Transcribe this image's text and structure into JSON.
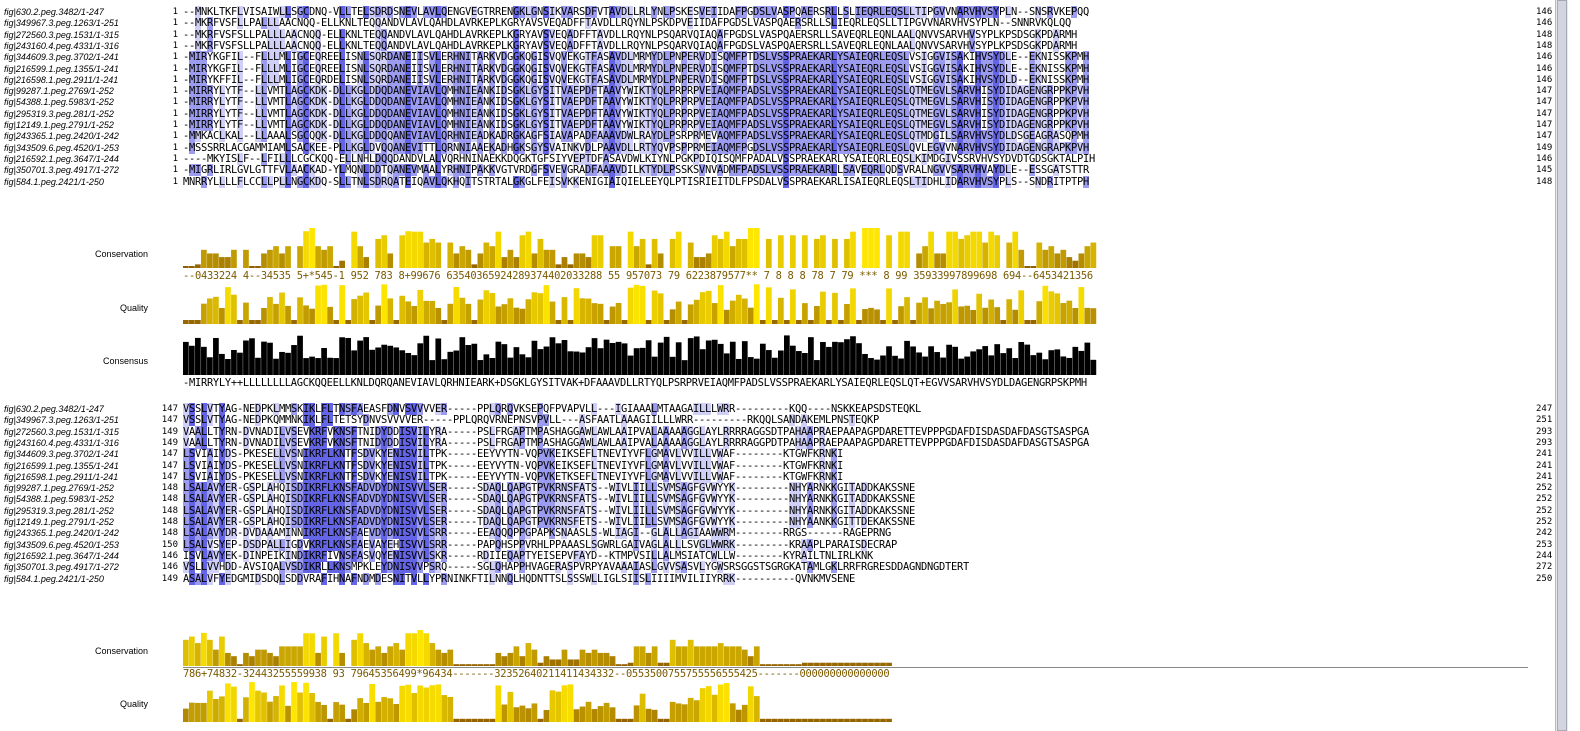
{
  "block1": {
    "rows": [
      {
        "name": "fig|630.2.peg.3482/1-247",
        "start": "1",
        "end": "146",
        "seq": "--MNKLTKFLVISAIWLLSGCDNQ-VLLTELSDRDSNEVLAVLQENGVEGTRRENGKLGNSIKVARSDFVTAVDLLRLYNLPSKESVEIIDAFPGDSLVASPQAERSRLLSLIEQRLEQSLLTIPGVVNARVHVSYPLN--SNSRVKEPQQ"
      },
      {
        "name": "fig|349967.3.peg.1263/1-251",
        "start": "1",
        "end": "146",
        "seq": "--MKRFVSFLLPALLLAACNQQ-ELLKNLTEQQANDVLAVLQAHDLAVRKEPLKGRYAVSVEQADFFTAVDLLRQYNLPSKDPVEIIDAFPGDSLVASPQAERSRLLSLIEQRLEQSLLTIPGVVNARVHVSYPLN--SNNRVKQLQQ"
      },
      {
        "name": "fig|272560.3.peg.1531/1-315",
        "start": "1",
        "end": "148",
        "seq": "--MKRFVSFSLLPALLLAACNQQ-ELLKNLTEQQANDVLAVLQAHDLAVRKEPLKGRYAVSVEQADFFTAVDLLRQYNLPSQARVQIAQAFPGDSLVASPQAERSRLLSAVEQRLEQNLAALQNVVSARVHVSYPLKPSDSGKPDARMH"
      },
      {
        "name": "fig|243160.4.peg.4331/1-316",
        "start": "1",
        "end": "148",
        "seq": "--MKRFVSFSLLPALLLAACNQQ-ELLKNLTEQQANDVLAVLQAHDLAVRKEPLKGRYAVSVEQADFFTAVDLLRQYNLPSQARVQIAQAFPGDSLVASPQAERSRLLSAVEQRLEQNLAALQNVVSARVHVSYPLKPSDSGKPDARMH"
      },
      {
        "name": "fig|344609.3.peg.3702/1-241",
        "start": "1",
        "end": "146",
        "seq": "-MIRYKGFIL--FLLLMLIGCEQREELISNLSQRDANEIISVLERHNITARKVDGGKQGISVQVEKGTFASAVDLMRMYDLPNPERVDISQMFPTDSLVSSPRAEKARLYSAIEQRLEQSLVSIGGVISAKIHVSYDLE--EKNISSKPMH"
      },
      {
        "name": "fig|216599.1.peg.1355/1-241",
        "start": "1",
        "end": "146",
        "seq": "-MIRYKGFIL--FLLLMLIGCEQREELISNLSQRDANEIISVLERHNITARKVDGGKQGISVQVEKGTFASAVDLMRMYDLPNPERVDISQMFPTDSLVSSPRAEKARLYSAIEQRLEQSLVSIGGVISAKIHVSYDLE--EKNISSKPMH"
      },
      {
        "name": "fig|216598.1.peg.2911/1-241",
        "start": "1",
        "end": "146",
        "seq": "-MIRYKFFIL--FLLLMLIGCEQRDELISNLSQRDANEIISVLERHNITARKVDGGKQGISVQVEKGTFASAVDLMRMYDLPNPERVDISQMFPTDSLVSSPRAEKARLYSAIEQRLEQSLVSIGGVISAKIHVSYDLD--EKNISSKPMH"
      },
      {
        "name": "fig|99287.1.peg.2769/1-252",
        "start": "1",
        "end": "147",
        "seq": "-MIRRYLYTF--LLVMTLAGCKDK-DLLKGLDDQDANEVIAVLQMHNIEANKIDSGKLGYSITVAEPDFTAAVYWIKTYQLPRPRPVEIAQMFPADSLVSSPRAEKARLYSAIEQRLEQSLQTMEGVLSARVHISYDIDAGENGRPPKPVH"
      },
      {
        "name": "fig|54388.1.peg.5983/1-252",
        "start": "1",
        "end": "147",
        "seq": "-MIRRYLYTF--LLVMTLAGCKDK-DLLKGLDDQDANEVIAVLQMHNIEANKIDSGKLGYSITVAEPDFTAAVYWIKTYQLPRPRPVEIAQMFPADSLVSSPRAEKARLYSAIEQRLEQSLQTMEGVLSARVHISYDIDAGENGRPPKPVH"
      },
      {
        "name": "fig|295319.3.peg.281/1-252",
        "start": "1",
        "end": "147",
        "seq": "-MIRRYLYTF--LLVMTLAGCKDK-DLLKGLDDQDANEVIAVLQMHNIEANKIDSGKLGYSITVAEPDFTAAVYWIKTYQLPRPRPVEIAQMFPADSLVSSPRAEKARLYSAIEQRLEQSLQTMEGVLSARVHISYDIDAGENGRPPKPVH"
      },
      {
        "name": "fig|12149.1.peg.2791/1-252",
        "start": "1",
        "end": "147",
        "seq": "-MIRRYLYTF--LLVMTLAGCKDK-DLLKGLDDQDANEVIAVLQMHNIEANKIDSGKLGYSITVAEPDFTAAVYWIKTYQLPRPRPVEIAQMFPADSLVSSPRAEKARLYSAIEQRLEQSLQTMEGVLSARVHISYDIDAGENGRPPKPVH"
      },
      {
        "name": "fig|243365.1.peg.2420/1-242",
        "start": "1",
        "end": "147",
        "seq": "-MMKACLKAL--LLAAALSGCQQK-DLLKGLDDQQANEVIAVLQRHNIEADKADRGKAGFSIAVAPADFAAAVDWLRAYDLPSRPRMEVAQMFPADSLVSSPRAEKARLYSAIEQRLEQSLQTMDGILSARVHVSYDLDSGEAGRASQPMH"
      },
      {
        "name": "fig|343509.6.peg.4520/1-253",
        "start": "1",
        "end": "149",
        "seq": "-MSSSRRLACGAMMIAMLSACKEE-PLLKGLDVQQANEVITTLQRNNIAAEKADHGKSGYSVAINKVDLPAAVDLLRTYQVPSPPRMEIAQMFPGDSLVSSPRAEKARLYSAIEQRLEQSLQVLEGVVNARVHVSYDIDAGENGRAPKPVH"
      },
      {
        "name": "fig|216592.1.peg.3647/1-244",
        "start": "1",
        "end": "146",
        "seq": "----MKYISLF--LFILLLCGCKQQ-ELLNHLDQQDANDVLALVQRHNINAEKKDQGKTGFSIYVEPTDFASAVDWLKIYNLPGKPDIQISQMFPADALVSSPRAEKARLYSAIEQRLEQSLKIMDGIVSSRVHVSYDVDTGDSGKTALPIH"
      },
      {
        "name": "fig|350701.3.peg.4917/1-272",
        "start": "1",
        "end": "145",
        "seq": "-MIGRLIRLGVLGTTFVLAACKAD-YLMQNLDDTQANEVMAALYRHNIPAKKVGTVRDGFSVEVGRADFAAAVDILKTYDLPSSKSVNVADMFPADSLVSSPRAEKARLLSAVEQRLQDSVRALNGVVSARVHVAYDLE--ESSGATSTTR"
      },
      {
        "name": "fig|584.1.peg.2421/1-250",
        "start": "1",
        "end": "148",
        "seq": "MNRRYLLLLFLCCLLPLLNGCKDQ-SLLTNLSDRQATEIQAVLQKHQITSTRTALGKGLFEISVKKENIGIAIQIELEEYQLPTISRIEITDLFPSDALVSSPRAEKARLISAIEQRLEQSLTIDHLIDARVHVSYPLS--SNDRITPTPH"
      }
    ],
    "conservation_label": "Conservation",
    "conservation_line": "--0433224 4--34535 5+*545-1 952 783 8+99676 63540365924289374402033288 55 957073 79 6223879577** 7 8 8 8 78 7 79 *** 8 99 35933997899698 694--6453421356",
    "quality_label": "Quality",
    "consensus_label": "Consensus",
    "consensus_line": "-MIRRYLY++LLLLLLLLAGCKQQEELLKNLDQRQANEVIAVLQRHNIEARK+DSGKLGYSITVAK+DFAAAVDLLRTYQLPSRPRVEIAQMFPADSLVSSPRAEKARLYSAIEQRLEQSLQT+EGVVSARVHVSYDLDAGENGRPSKPMH"
  },
  "block2": {
    "rows": [
      {
        "name": "fig|630.2.peg.3482/1-247",
        "start": "147",
        "end": "247",
        "seq": "VSSLVTYAG-NEDPKLMMSKIKLFLTNSFAEASFDNVSVVVVER-----PPLQRQVKSEPQFPVAPVLL---IGIAAALMTAAGAILLLWRR---------KQQ----NSKKEAPSDSTEQKL"
      },
      {
        "name": "fig|349967.3.peg.1263/1-251",
        "start": "147",
        "end": "251",
        "seq": "VSSLVTYAG-NEDPKQMMNKIKLFLTETSYDNVSVVVVER-----PPLQRQVRNEPNSVPVLL---ASFAATLAAAGIILLLWRR---------RKQQLSANDAKEMLPNSTEQKP"
      },
      {
        "name": "fig|272560.3.peg.1531/1-315",
        "start": "149",
        "end": "293",
        "seq": "VAALLTYRN-DVNADILVSEVKRFVKNSFTNIDYDDISVILYRA-----PSLFRGAPTMPASHAGGAWLAWLAAIPVALAAAAAGGLAYLRRRRAGGSDTPAHAAPRAEPAAPAGPDARETTEVPPPGDAFDISDASDAFDASGTSASPGA"
      },
      {
        "name": "fig|243160.4.peg.4331/1-316",
        "start": "149",
        "end": "293",
        "seq": "VAALLTYRN-DVNADILVSEVKRFVKNSFTNIDYDDISVILYRA-----PSLFRGAPTMPASHAGGAWLAWLAAIPVALAAAAAGGLAYLRRRRAGGPDTPAHAAPRAEPAAPAGPDARETTEVPPPGDAFDISDASDAFDASGTSASPGA"
      },
      {
        "name": "fig|344609.3.peg.3702/1-241",
        "start": "147",
        "end": "241",
        "seq": "LSVIAIYDS-PKESELLVSNIKRFLKNTFSDVKYENISVILTPK-----EEYVYTN-VQPVKEIKSEFLTNEVIYVFLGMAVLVVILLVWAF--------KTGWFKRNKI"
      },
      {
        "name": "fig|216599.1.peg.1355/1-241",
        "start": "147",
        "end": "241",
        "seq": "LSVIAIYDS-PKESELLVSNIKRFLKNTFSDVKYENISVILTPK-----EEYVYTN-VQPVKEIKSEFLTNEVIYVFLGMAVLVVILLVWAF--------KTGWFKRNKI"
      },
      {
        "name": "fig|216598.1.peg.2911/1-241",
        "start": "147",
        "end": "241",
        "seq": "LSVIAIYDS-PKESELLVSNIKRFLKNTFSDVKYENISVILTPK-----EEYVYTN-VQPVKETKSEFLTNEVIYVFLGMAVLVVILLVWAF--------KTGWFKRNKI"
      },
      {
        "name": "fig|99287.1.peg.2769/1-252",
        "start": "148",
        "end": "252",
        "seq": "LSALAVYER-GSPLAHQISDIKRFLKNSFADVDYDNISVVLSER-----SDAQLQAPGTPVKRNSFATS--WIVLIILLSVMSAGFGVWYYK---------NHYARNKKGITADDKAKSSNE"
      },
      {
        "name": "fig|54388.1.peg.5983/1-252",
        "start": "148",
        "end": "252",
        "seq": "LSALAVYER-GSPLAHQISDIKRFLKNSFADVDYDNISVVLSER-----SDAQLQAPGTPVKRNSFATS--WIVLIILLSVMSAGFGVWYYK---------NHYARNKKGITADDKAKSSNE"
      },
      {
        "name": "fig|295319.3.peg.281/1-252",
        "start": "148",
        "end": "252",
        "seq": "LSALAVYER-GSPLAHQISDIKRFLKNSFADVDYDNISVVLSER-----SDAQLQAPGTPVKRNSFATS--WIVLIILLSVMSAGFGVWYYK---------NHYARNKKGITADDKAKSSNE"
      },
      {
        "name": "fig|12149.1.peg.2791/1-252",
        "start": "148",
        "end": "252",
        "seq": "LSALAVYER-GSPLAHQISDIKRFLKNSFADVDYDNISVVLSER-----TDAQLQAPGTPVKRNSFETS--WIVLIILLSVMSAGFGVWYYK---------NHYAANKKGITTDEKAKSSNE"
      },
      {
        "name": "fig|243365.1.peg.2420/1-242",
        "start": "148",
        "end": "242",
        "seq": "LSALAVYDR-DVDAAAMINNIKRFLKNSFAEVDYDNISVVLSRR-----EEAQQQPPGPAPKSNAASLS-WLIAGI--GLALLAGIAAWWRM--------RRGS------RAGEPRNG"
      },
      {
        "name": "fig|343509.6.peg.4520/1-253",
        "start": "150",
        "end": "253",
        "seq": "LSALVSYEP-DSDPALLIGDVKRFLKNSFAEVAYEHISVVLSRR-----PAPQHSPPVRHLPPAAASLSGWRLGAIVAGLALLLSVGLWWRK---------KRAAPLPARAISDECRAP"
      },
      {
        "name": "fig|216592.1.peg.3647/1-244",
        "start": "146",
        "end": "244",
        "seq": "ISVLAVYEK-DINPEIKINDIKRFIVNSFASVQYENISVVLSKR-----RDIIEQAPTYEISEPVFAYD--KTMPVSILLALMSIATCWLLW--------KYRAILTNLIRLKNK"
      },
      {
        "name": "fig|350701.3.peg.4917/1-272",
        "start": "146",
        "end": "272",
        "seq": "VSLLVVHDD-AVSIQALVSDIKRLLKNSMPKLEYDNISVVPSRQ-----SGLQHAPPHVAGERASPVRPYAVAAAIASLGVVSASVLYGWSRSGGSTSGRGKATAMLGKLRRFRGRESDDAGNDNGDTERT"
      },
      {
        "name": "fig|584.1.peg.2421/1-250",
        "start": "149",
        "end": "250",
        "seq": "ASALVFYEDGMIDSDQLSDDVRAFIHNAFNDMDESNITVLLYPRNINKFTILNNQLHQDNTTSLSSSWLLIGLSIISLIIIIMVILIIYRRK----------QVNKMVSENE"
      }
    ],
    "conservation_label": "Conservation",
    "conservation_line": "786+74832-32443255559938 93 79645356499*96434-------32352640211411434332--0553500755755556555425-------000000000000000",
    "quality_label": "Quality"
  },
  "colors": {
    "strong": "#6464e6",
    "medium": "#9b9bf0",
    "light": "#cfcff8",
    "cons_high": "#ffeb00",
    "cons_low": "#8b5a00",
    "consensus_bar": "#000000"
  }
}
